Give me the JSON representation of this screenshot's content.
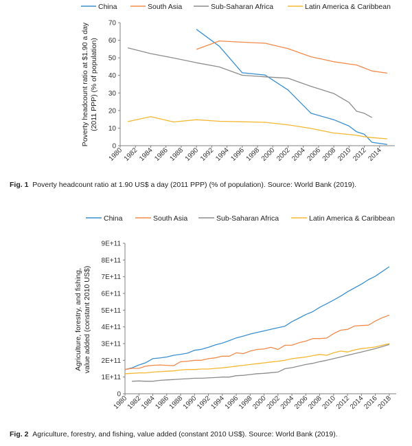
{
  "chart_data": [
    {
      "type": "line",
      "id": "fig1",
      "ylabel_lines": [
        "Poverty headcount ratio at $1.90 a day",
        "(2011 PPP) (% of population)"
      ],
      "ylim": [
        0,
        70
      ],
      "yticks": [
        0,
        10,
        20,
        30,
        40,
        50,
        60,
        70
      ],
      "ytick_labels": [
        "0",
        "10",
        "20",
        "30",
        "40",
        "50",
        "60",
        "70"
      ],
      "xlim": [
        1980,
        2016
      ],
      "xticks": [
        1980,
        1982,
        1984,
        1986,
        1988,
        1990,
        1992,
        1994,
        1996,
        1998,
        2000,
        2002,
        2004,
        2006,
        2008,
        2010,
        2012,
        2014
      ],
      "legend": "top",
      "series": [
        {
          "name": "China",
          "color": "#3a8fd0",
          "x": [
            1990,
            1993,
            1996,
            1999,
            2002,
            2005,
            2008,
            2010,
            2011,
            2012,
            2013,
            2015
          ],
          "y": [
            66.2,
            56.6,
            41.5,
            40.2,
            31.7,
            18.5,
            14.8,
            11.2,
            7.9,
            6.5,
            1.9,
            0.7
          ]
        },
        {
          "name": "South Asia",
          "color": "#f28a4a",
          "x": [
            1990,
            1993,
            1996,
            1999,
            2002,
            2005,
            2008,
            2010,
            2011,
            2012,
            2013,
            2015
          ],
          "y": [
            54.8,
            59.6,
            58.9,
            58.3,
            55.2,
            50.6,
            47.8,
            46.5,
            45.9,
            44.2,
            42.5,
            41.3
          ]
        },
        {
          "name": "Sub-Saharan Africa",
          "color": "#8c8c8c",
          "x": [
            1981,
            1984,
            1987,
            1990,
            1993,
            1996,
            1999,
            2002,
            2005,
            2008,
            2010,
            2011,
            2012,
            2013
          ],
          "y": [
            55.7,
            52.4,
            49.9,
            47.2,
            44.8,
            40.1,
            39.2,
            38.4,
            33.8,
            29.7,
            24.6,
            19.6,
            18.4,
            16.0
          ]
        },
        {
          "name": "Latin America & Caribbean",
          "color": "#f5b731",
          "x": [
            1981,
            1984,
            1987,
            1990,
            1993,
            1996,
            1999,
            2002,
            2005,
            2008,
            2010,
            2011,
            2012,
            2013,
            2015
          ],
          "y": [
            13.7,
            16.5,
            13.5,
            14.8,
            13.9,
            13.6,
            13.3,
            11.9,
            9.8,
            7.2,
            6.4,
            5.9,
            5.1,
            4.6,
            3.9
          ]
        }
      ],
      "caption_label": "Fig. 1",
      "caption_text": "Poverty headcount ratio at 1.90 US$ a day (2011 PPP) (% of population).  Source: World Bank (2019)."
    },
    {
      "type": "line",
      "id": "fig2",
      "ylabel_lines": [
        "Agriculture, forestry, and fishing,",
        "value added (constant 2010 US$)"
      ],
      "ylim": [
        0,
        900000000000
      ],
      "yticks": [
        0,
        100000000000,
        200000000000,
        300000000000,
        400000000000,
        500000000000,
        600000000000,
        700000000000,
        800000000000,
        900000000000
      ],
      "ytick_labels": [
        "0",
        "1E+11",
        "2E+11",
        "3E+11",
        "4E+11",
        "5E+11",
        "6E+11",
        "7E+11",
        "8E+11",
        "9E+11"
      ],
      "xlim": [
        1980,
        2019
      ],
      "xticks": [
        1980,
        1982,
        1984,
        1986,
        1988,
        1990,
        1992,
        1994,
        1996,
        1998,
        2000,
        2002,
        2004,
        2006,
        2008,
        2010,
        2012,
        2014,
        2016,
        2018
      ],
      "legend": "top",
      "series": [
        {
          "name": "China",
          "color": "#3a8fd0",
          "x": [
            1980,
            1981,
            1982,
            1983,
            1984,
            1985,
            1986,
            1987,
            1988,
            1989,
            1990,
            1991,
            1992,
            1993,
            1994,
            1995,
            1996,
            1997,
            1998,
            1999,
            2000,
            2001,
            2002,
            2003,
            2004,
            2005,
            2006,
            2007,
            2008,
            2009,
            2010,
            2011,
            2012,
            2013,
            2014,
            2015,
            2016,
            2017,
            2018
          ],
          "y": [
            1.45,
            1.55,
            1.72,
            1.86,
            2.1,
            2.14,
            2.2,
            2.3,
            2.36,
            2.43,
            2.6,
            2.66,
            2.78,
            2.92,
            3.03,
            3.18,
            3.34,
            3.45,
            3.57,
            3.67,
            3.76,
            3.86,
            3.95,
            4.04,
            4.31,
            4.52,
            4.74,
            4.91,
            5.17,
            5.38,
            5.6,
            5.84,
            6.1,
            6.33,
            6.56,
            6.82,
            7.03,
            7.31,
            7.6
          ]
        },
        {
          "name": "South Asia",
          "color": "#f28a4a",
          "x": [
            1980,
            1981,
            1982,
            1983,
            1984,
            1985,
            1986,
            1987,
            1988,
            1989,
            1990,
            1991,
            1992,
            1993,
            1994,
            1995,
            1996,
            1997,
            1998,
            1999,
            2000,
            2001,
            2002,
            2003,
            2004,
            2005,
            2006,
            2007,
            2008,
            2009,
            2010,
            2011,
            2012,
            2013,
            2014,
            2015,
            2016,
            2017,
            2018
          ],
          "y": [
            1.45,
            1.52,
            1.52,
            1.65,
            1.7,
            1.72,
            1.7,
            1.68,
            1.92,
            1.95,
            2.0,
            2.0,
            2.1,
            2.15,
            2.25,
            2.25,
            2.45,
            2.4,
            2.55,
            2.65,
            2.68,
            2.78,
            2.65,
            2.9,
            2.9,
            3.05,
            3.15,
            3.3,
            3.3,
            3.33,
            3.6,
            3.8,
            3.85,
            4.05,
            4.08,
            4.1,
            4.35,
            4.55,
            4.7
          ]
        },
        {
          "name": "Sub-Saharan Africa",
          "color": "#8c8c8c",
          "x": [
            1980,
            1981,
            1982,
            1983,
            1984,
            1985,
            1986,
            1987,
            1988,
            1989,
            1990,
            1991,
            1992,
            1993,
            1994,
            1995,
            1996,
            1997,
            1998,
            1999,
            2000,
            2001,
            2002,
            2003,
            2004,
            2005,
            2006,
            2007,
            2008,
            2009,
            2010,
            2011,
            2012,
            2013,
            2014,
            2015,
            2016,
            2017,
            2018
          ],
          "y": [
            null,
            0.75,
            0.77,
            0.75,
            0.75,
            0.8,
            0.83,
            0.85,
            0.88,
            0.9,
            0.93,
            0.93,
            0.95,
            0.97,
            1.0,
            1.0,
            1.08,
            1.1,
            1.15,
            1.2,
            1.22,
            1.26,
            1.3,
            1.5,
            1.56,
            1.65,
            1.75,
            1.82,
            1.92,
            2.0,
            2.1,
            2.2,
            2.3,
            2.4,
            2.5,
            2.6,
            2.7,
            2.82,
            2.95
          ]
        },
        {
          "name": "Latin America & Caribbean",
          "color": "#f5b731",
          "x": [
            1980,
            1981,
            1982,
            1983,
            1984,
            1985,
            1986,
            1987,
            1988,
            1989,
            1990,
            1991,
            1992,
            1993,
            1994,
            1995,
            1996,
            1997,
            1998,
            1999,
            2000,
            2001,
            2002,
            2003,
            2004,
            2005,
            2006,
            2007,
            2008,
            2009,
            2010,
            2011,
            2012,
            2013,
            2014,
            2015,
            2016,
            2017,
            2018
          ],
          "y": [
            1.2,
            1.22,
            1.25,
            1.25,
            1.3,
            1.32,
            1.35,
            1.37,
            1.42,
            1.45,
            1.45,
            1.48,
            1.48,
            1.52,
            1.55,
            1.6,
            1.65,
            1.7,
            1.75,
            1.8,
            1.85,
            1.9,
            1.95,
            2.0,
            2.1,
            2.15,
            2.2,
            2.28,
            2.35,
            2.3,
            2.45,
            2.55,
            2.5,
            2.62,
            2.7,
            2.75,
            2.8,
            2.9,
            3.0
          ]
        }
      ],
      "y_scale": 100000000000,
      "caption_label": "Fig. 2",
      "caption_text": "Agriculture, forestry, and fishing, value added (constant 2010 US$).  Source: World Bank (2019)."
    }
  ]
}
